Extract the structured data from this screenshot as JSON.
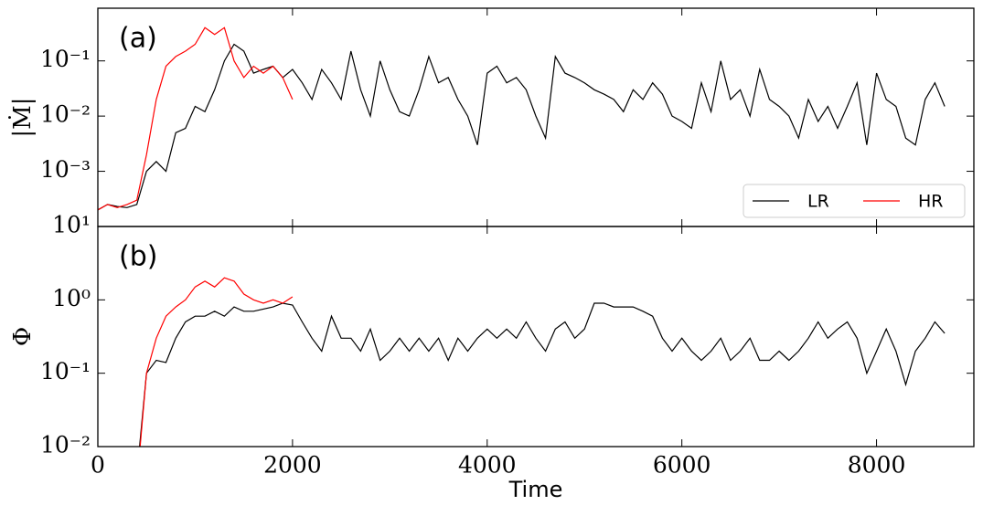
{
  "chart_data": [
    {
      "type": "line",
      "panel_label": "(a)",
      "ylabel": "|Ṁ|",
      "log_y": true,
      "grid": false,
      "legend": "lower right",
      "xlim": [
        0,
        9000
      ],
      "xticks": [
        0,
        2000,
        4000,
        6000,
        8000
      ],
      "ylim": [
        0.0001,
        0.9
      ],
      "yticks": [
        {
          "value": 0.001,
          "label": "10⁻³"
        },
        {
          "value": 0.01,
          "label": "10⁻²"
        },
        {
          "value": 0.1,
          "label": "10⁻¹"
        }
      ],
      "x": [
        0,
        100,
        200,
        300,
        400,
        500,
        600,
        700,
        800,
        900,
        1000,
        1100,
        1200,
        1300,
        1400,
        1500,
        1600,
        1700,
        1800,
        1900,
        2000,
        2100,
        2200,
        2300,
        2400,
        2500,
        2600,
        2700,
        2800,
        2900,
        3000,
        3100,
        3200,
        3300,
        3400,
        3500,
        3600,
        3700,
        3800,
        3900,
        4000,
        4100,
        4200,
        4300,
        4400,
        4500,
        4600,
        4700,
        4800,
        4900,
        5000,
        5100,
        5200,
        5300,
        5400,
        5500,
        5600,
        5700,
        5800,
        5900,
        6000,
        6100,
        6200,
        6300,
        6400,
        6500,
        6600,
        6700,
        6800,
        6900,
        7000,
        7100,
        7200,
        7300,
        7400,
        7500,
        7600,
        7700,
        7800,
        7900,
        8000,
        8100,
        8200,
        8300,
        8400,
        8500,
        8600,
        8700
      ],
      "series": [
        {
          "name": "LR",
          "color": "#000000",
          "values": [
            0.0002,
            0.00025,
            0.00023,
            0.00022,
            0.00025,
            0.001,
            0.0015,
            0.001,
            0.005,
            0.006,
            0.015,
            0.012,
            0.03,
            0.1,
            0.2,
            0.15,
            0.06,
            0.07,
            0.08,
            0.05,
            0.07,
            0.04,
            0.02,
            0.07,
            0.04,
            0.02,
            0.15,
            0.03,
            0.01,
            0.1,
            0.03,
            0.012,
            0.01,
            0.03,
            0.12,
            0.04,
            0.05,
            0.02,
            0.01,
            0.003,
            0.06,
            0.08,
            0.04,
            0.05,
            0.03,
            0.01,
            0.004,
            0.12,
            0.06,
            0.05,
            0.04,
            0.03,
            0.025,
            0.02,
            0.012,
            0.03,
            0.02,
            0.04,
            0.025,
            0.01,
            0.008,
            0.006,
            0.04,
            0.012,
            0.1,
            0.02,
            0.03,
            0.01,
            0.07,
            0.02,
            0.015,
            0.01,
            0.004,
            0.02,
            0.008,
            0.015,
            0.006,
            0.015,
            0.04,
            0.003,
            0.06,
            0.02,
            0.015,
            0.004,
            0.003,
            0.02,
            0.04,
            0.015
          ]
        },
        {
          "name": "HR",
          "color": "#ff0000",
          "values": [
            0.0002,
            0.00025,
            0.00022,
            0.00025,
            0.0003,
            0.002,
            0.02,
            0.08,
            0.12,
            0.15,
            0.2,
            0.4,
            0.3,
            0.4,
            0.1,
            0.05,
            0.08,
            0.06,
            0.08,
            0.05,
            0.02,
            null,
            null,
            null,
            null,
            null,
            null,
            null,
            null,
            null,
            null,
            null,
            null,
            null,
            null,
            null,
            null,
            null,
            null,
            null,
            null,
            null,
            null,
            null,
            null,
            null,
            null,
            null,
            null,
            null,
            null,
            null,
            null,
            null,
            null,
            null,
            null,
            null,
            null,
            null,
            null,
            null,
            null,
            null,
            null,
            null,
            null,
            null,
            null,
            null,
            null,
            null,
            null,
            null,
            null,
            null,
            null,
            null,
            null,
            null,
            null,
            null,
            null,
            null,
            null,
            null,
            null,
            null
          ]
        }
      ]
    },
    {
      "type": "line",
      "panel_label": "(b)",
      "ylabel": "Φ",
      "xlabel": "Time",
      "log_y": true,
      "grid": false,
      "xlim": [
        0,
        9000
      ],
      "xticks": [
        0,
        2000,
        4000,
        6000,
        8000
      ],
      "ylim": [
        0.01,
        10
      ],
      "yticks": [
        {
          "value": 0.01,
          "label": "10⁻²"
        },
        {
          "value": 0.1,
          "label": "10⁻¹"
        },
        {
          "value": 1,
          "label": "10⁰"
        },
        {
          "value": 10,
          "label": "10¹"
        }
      ],
      "x": [
        0,
        100,
        200,
        300,
        400,
        500,
        600,
        700,
        800,
        900,
        1000,
        1100,
        1200,
        1300,
        1400,
        1500,
        1600,
        1700,
        1800,
        1900,
        2000,
        2100,
        2200,
        2300,
        2400,
        2500,
        2600,
        2700,
        2800,
        2900,
        3000,
        3100,
        3200,
        3300,
        3400,
        3500,
        3600,
        3700,
        3800,
        3900,
        4000,
        4100,
        4200,
        4300,
        4400,
        4500,
        4600,
        4700,
        4800,
        4900,
        5000,
        5100,
        5200,
        5300,
        5400,
        5500,
        5600,
        5700,
        5800,
        5900,
        6000,
        6100,
        6200,
        6300,
        6400,
        6500,
        6600,
        6700,
        6800,
        6900,
        7000,
        7100,
        7200,
        7300,
        7400,
        7500,
        7600,
        7700,
        7800,
        7900,
        8000,
        8100,
        8200,
        8300,
        8400,
        8500,
        8600,
        8700
      ],
      "series": [
        {
          "color": "#000000",
          "values": [
            null,
            null,
            null,
            null,
            0.004,
            0.1,
            0.15,
            0.14,
            0.3,
            0.5,
            0.6,
            0.6,
            0.7,
            0.6,
            0.8,
            0.7,
            0.7,
            0.75,
            0.8,
            0.9,
            0.85,
            0.5,
            0.3,
            0.2,
            0.6,
            0.3,
            0.3,
            0.2,
            0.4,
            0.15,
            0.2,
            0.3,
            0.2,
            0.3,
            0.2,
            0.3,
            0.15,
            0.3,
            0.2,
            0.3,
            0.4,
            0.3,
            0.4,
            0.3,
            0.5,
            0.3,
            0.2,
            0.4,
            0.5,
            0.3,
            0.4,
            0.9,
            0.9,
            0.8,
            0.8,
            0.8,
            0.7,
            0.6,
            0.3,
            0.2,
            0.3,
            0.2,
            0.15,
            0.2,
            0.3,
            0.15,
            0.2,
            0.3,
            0.15,
            0.15,
            0.2,
            0.15,
            0.2,
            0.3,
            0.5,
            0.3,
            0.4,
            0.5,
            0.3,
            0.1,
            0.2,
            0.4,
            0.2,
            0.07,
            0.2,
            0.3,
            0.5,
            0.35
          ]
        },
        {
          "color": "#ff0000",
          "values": [
            null,
            null,
            null,
            null,
            0.003,
            0.1,
            0.3,
            0.6,
            0.8,
            1.0,
            1.5,
            1.8,
            1.5,
            2.0,
            1.8,
            1.2,
            1.0,
            0.9,
            1.0,
            0.9,
            1.1,
            null,
            null,
            null,
            null,
            null,
            null,
            null,
            null,
            null,
            null,
            null,
            null,
            null,
            null,
            null,
            null,
            null,
            null,
            null,
            null,
            null,
            null,
            null,
            null,
            null,
            null,
            null,
            null,
            null,
            null,
            null,
            null,
            null,
            null,
            null,
            null,
            null,
            null,
            null,
            null,
            null,
            null,
            null,
            null,
            null,
            null,
            null,
            null,
            null,
            null,
            null,
            null,
            null,
            null,
            null,
            null,
            null,
            null,
            null,
            null,
            null,
            null,
            null,
            null,
            null,
            null,
            null
          ]
        }
      ]
    }
  ]
}
